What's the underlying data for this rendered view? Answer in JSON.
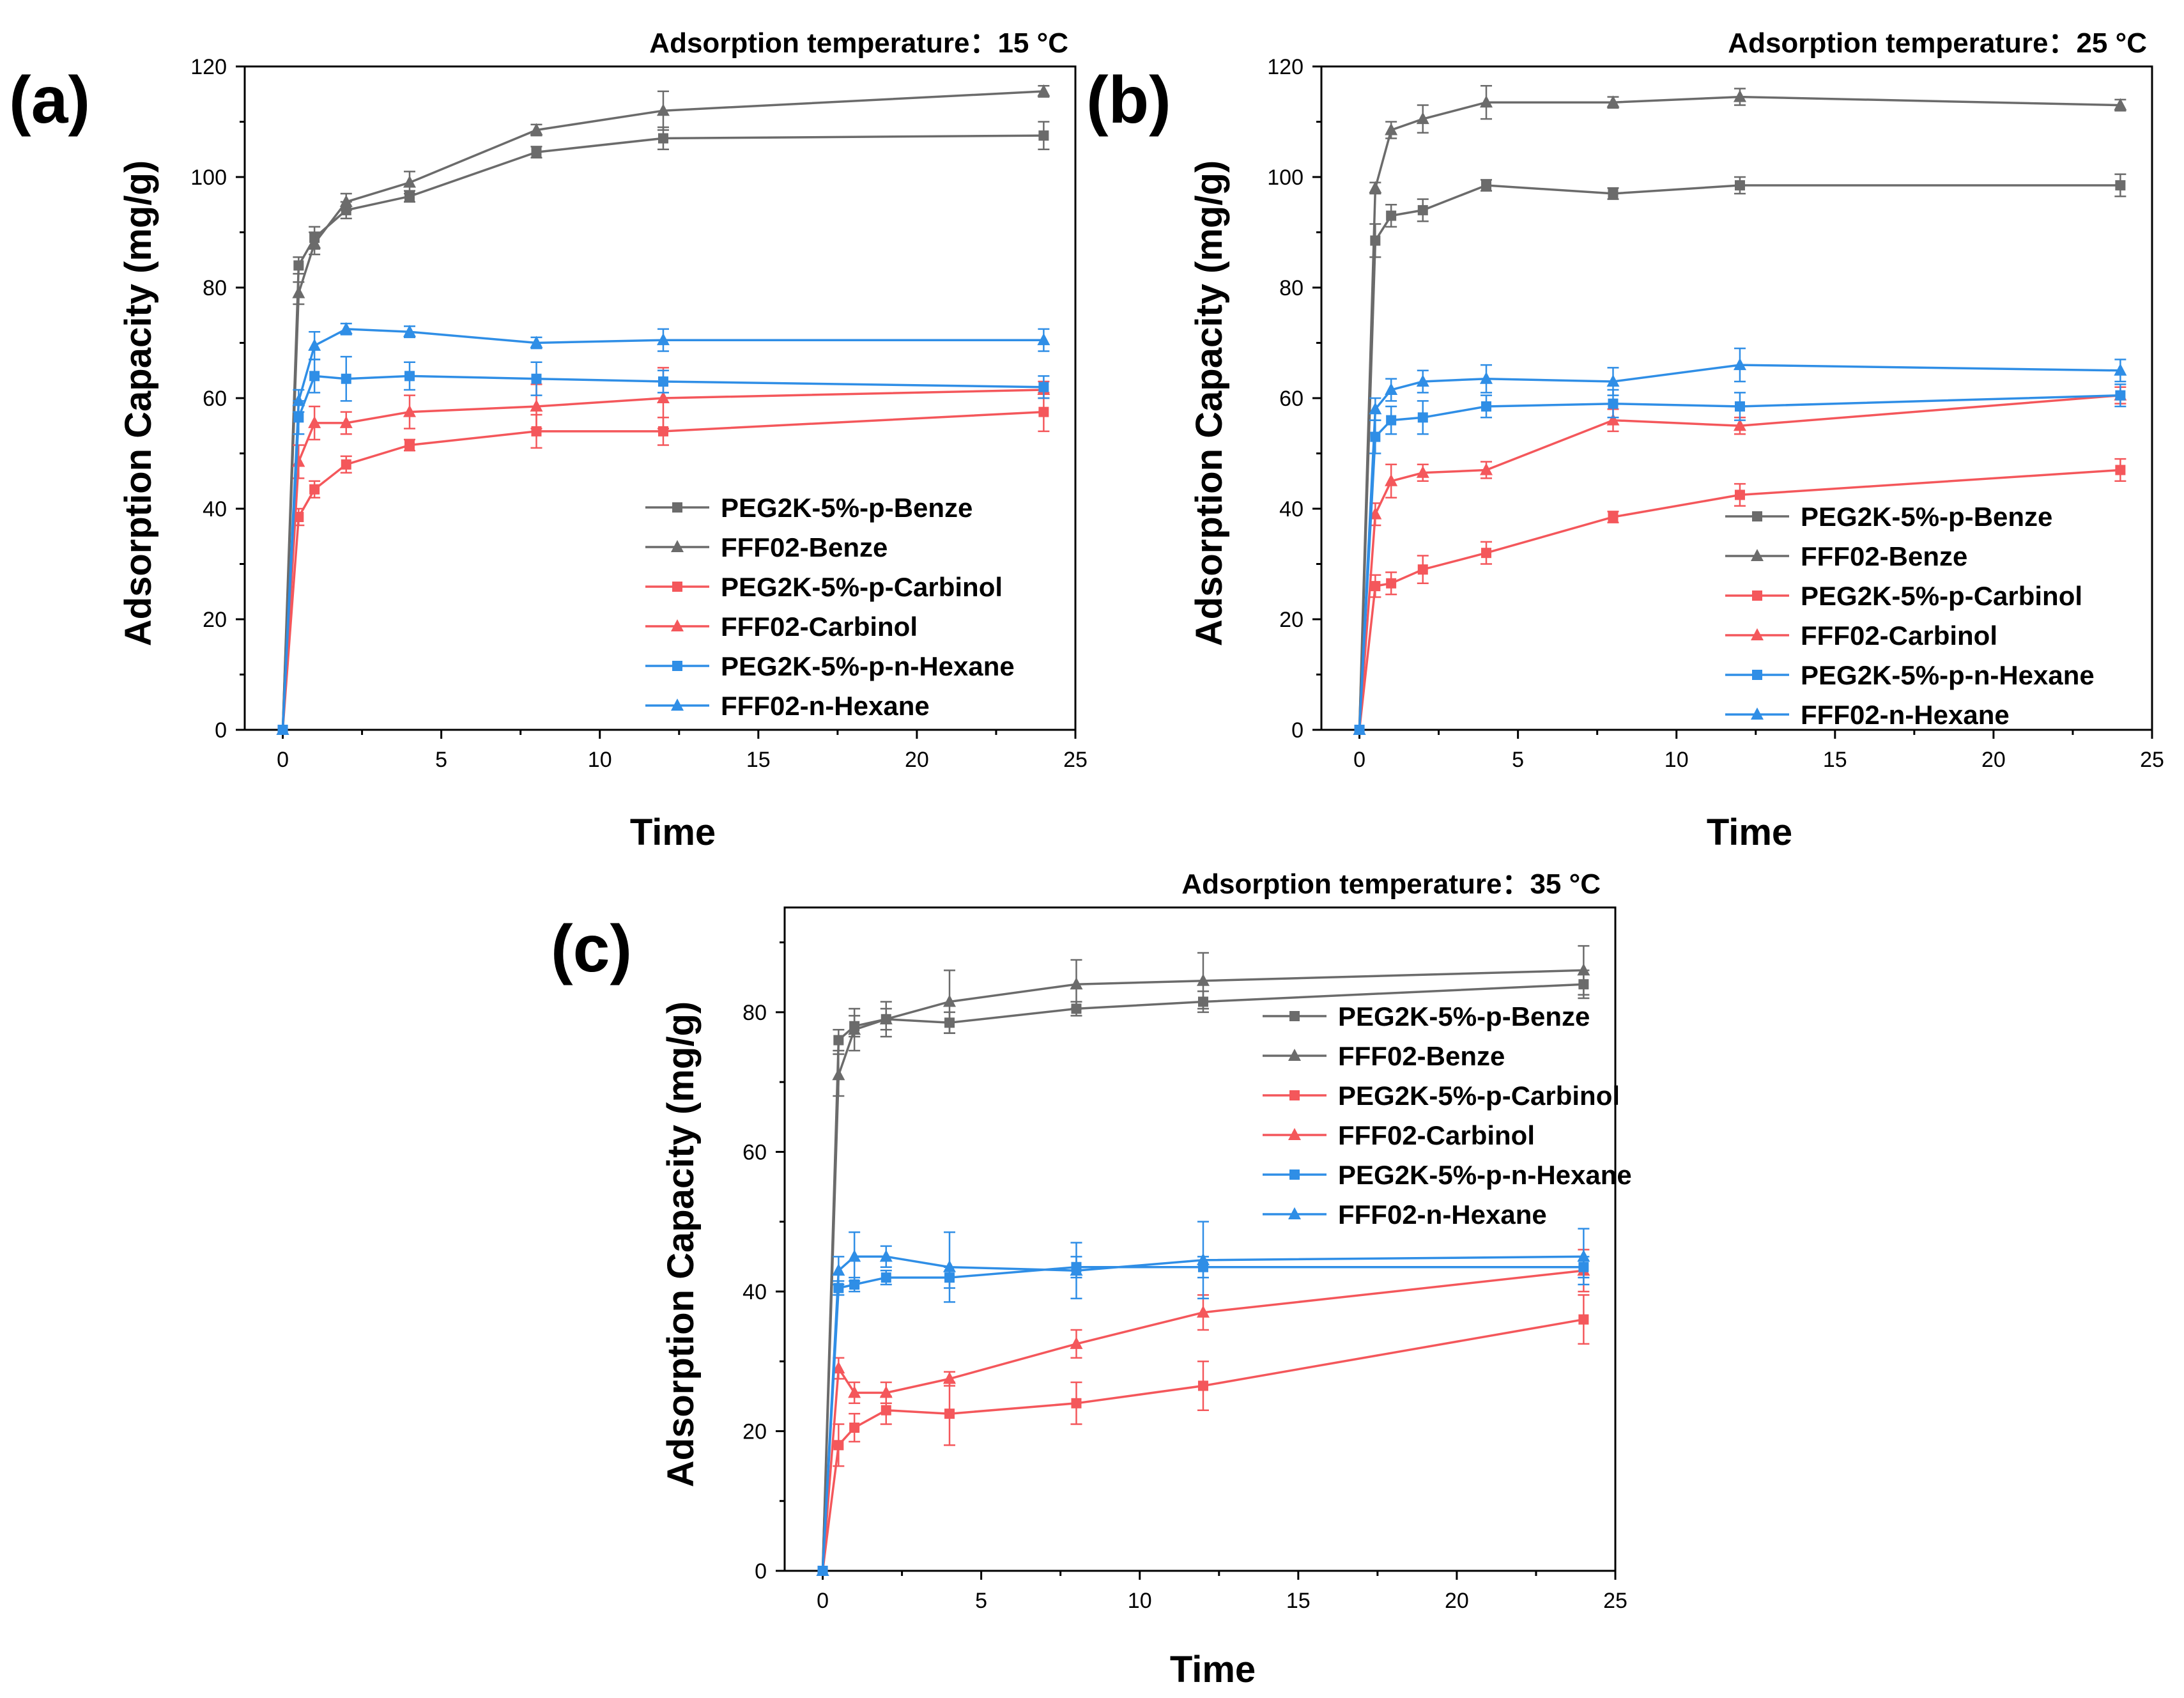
{
  "colors": {
    "gray": "#6b6b6b",
    "red": "#f4575b",
    "blue": "#2f8ee6"
  },
  "chart_data": [
    {
      "type": "line",
      "panel_label": "(a)",
      "title": "Adsorption temperature：15 °C",
      "xlabel": "Time",
      "ylabel": "Adsorption Capacity (mg/g)",
      "xlim": [
        -1.2,
        25
      ],
      "ylim": [
        0,
        120
      ],
      "xticks": [
        "0",
        "5",
        "10",
        "15",
        "20",
        "25"
      ],
      "yticks": [
        "0",
        "20",
        "40",
        "60",
        "80",
        "100",
        "120"
      ],
      "x": [
        0,
        0.5,
        1,
        2,
        4,
        8,
        12,
        24
      ],
      "series": [
        {
          "name": "PEG2K-5%-p-Benze",
          "color": "gray",
          "marker": "square",
          "values": [
            0,
            84,
            89,
            94,
            96.5,
            104.5,
            107,
            107.5
          ],
          "err": [
            0,
            1.5,
            2,
            1.5,
            1,
            1,
            2,
            2.5
          ]
        },
        {
          "name": "FFF02-Benze",
          "color": "gray",
          "marker": "triangle",
          "values": [
            0,
            79,
            88,
            95.5,
            99,
            108.5,
            112,
            115.5
          ],
          "err": [
            0,
            2,
            2,
            1.5,
            2,
            1,
            3.5,
            1
          ]
        },
        {
          "name": "PEG2K-5%-p-Carbinol",
          "color": "red",
          "marker": "square",
          "values": [
            0,
            38.5,
            43.5,
            48,
            51.5,
            54,
            54,
            57.5
          ],
          "err": [
            0,
            1.5,
            1.5,
            1.5,
            1,
            3,
            2.5,
            3.5
          ]
        },
        {
          "name": "FFF02-Carbinol",
          "color": "red",
          "marker": "triangle",
          "values": [
            0,
            48.5,
            55.5,
            55.5,
            57.5,
            58.5,
            60,
            61.5
          ],
          "err": [
            0,
            3,
            3,
            2,
            3,
            4,
            5.5,
            1.5
          ]
        },
        {
          "name": "PEG2K-5%-p-n-Hexane",
          "color": "blue",
          "marker": "square",
          "values": [
            0,
            56.5,
            64,
            63.5,
            64,
            63.5,
            63,
            62
          ],
          "err": [
            0,
            3,
            3,
            4,
            2.5,
            3,
            2,
            2
          ]
        },
        {
          "name": "FFF02-n-Hexane",
          "color": "blue",
          "marker": "triangle",
          "values": [
            0,
            59.5,
            69.5,
            72.5,
            72,
            70,
            70.5,
            70.5
          ],
          "err": [
            0,
            2,
            2.5,
            1,
            1,
            1,
            2,
            2
          ]
        }
      ]
    },
    {
      "type": "line",
      "panel_label": "(b)",
      "title": "Adsorption temperature：25 °C",
      "xlabel": "Time",
      "ylabel": "Adsorption Capacity (mg/g)",
      "xlim": [
        -1.2,
        25
      ],
      "ylim": [
        0,
        120
      ],
      "xticks": [
        "0",
        "5",
        "10",
        "15",
        "20",
        "25"
      ],
      "yticks": [
        "0",
        "20",
        "40",
        "60",
        "80",
        "100",
        "120"
      ],
      "x": [
        0,
        0.5,
        1,
        2,
        4,
        8,
        12,
        24
      ],
      "series": [
        {
          "name": "PEG2K-5%-p-Benze",
          "color": "gray",
          "marker": "square",
          "values": [
            0,
            88.5,
            93,
            94,
            98.5,
            97,
            98.5,
            98.5
          ],
          "err": [
            0,
            3,
            2,
            2,
            1,
            1,
            1.5,
            2
          ]
        },
        {
          "name": "FFF02-Benze",
          "color": "gray",
          "marker": "triangle",
          "values": [
            0,
            98,
            108.5,
            110.5,
            113.5,
            113.5,
            114.5,
            113
          ],
          "err": [
            0,
            1,
            1.5,
            2.5,
            3,
            1,
            1.5,
            1
          ]
        },
        {
          "name": "PEG2K-5%-p-Carbinol",
          "color": "red",
          "marker": "square",
          "values": [
            0,
            26,
            26.5,
            29,
            32,
            38.5,
            42.5,
            47
          ],
          "err": [
            0,
            2,
            2,
            2.5,
            2,
            1,
            2,
            2
          ]
        },
        {
          "name": "FFF02-Carbinol",
          "color": "red",
          "marker": "triangle",
          "values": [
            0,
            39,
            45,
            46.5,
            47,
            56,
            55,
            60.5
          ],
          "err": [
            0,
            2,
            3,
            1.5,
            1.5,
            2,
            1.5,
            1.5
          ]
        },
        {
          "name": "PEG2K-5%-p-n-Hexane",
          "color": "blue",
          "marker": "square",
          "values": [
            0,
            53,
            56,
            56.5,
            58.5,
            59,
            58.5,
            60.5
          ],
          "err": [
            0,
            3,
            2.5,
            3,
            2,
            2.5,
            2.5,
            2
          ]
        },
        {
          "name": "FFF02-n-Hexane",
          "color": "blue",
          "marker": "triangle",
          "values": [
            0,
            58,
            61.5,
            63,
            63.5,
            63,
            66,
            65
          ],
          "err": [
            0,
            2,
            2,
            2,
            2.5,
            2.5,
            3,
            2
          ]
        }
      ]
    },
    {
      "type": "line",
      "panel_label": "(c)",
      "title": "Adsorption temperature：35 °C",
      "xlabel": "Time",
      "ylabel": "Adsorption Capacity (mg/g)",
      "xlim": [
        -1.2,
        25
      ],
      "ylim": [
        0,
        95
      ],
      "xticks": [
        "0",
        "5",
        "10",
        "15",
        "20",
        "25"
      ],
      "yticks": [
        "0",
        "20",
        "40",
        "60",
        "80"
      ],
      "x": [
        0,
        0.5,
        1,
        2,
        4,
        8,
        12,
        24
      ],
      "series": [
        {
          "name": "PEG2K-5%-p-Benze",
          "color": "gray",
          "marker": "square",
          "values": [
            0,
            76,
            78,
            79,
            78.5,
            80.5,
            81.5,
            84
          ],
          "err": [
            0,
            1.5,
            1.5,
            1.5,
            1.5,
            1,
            1.5,
            2
          ]
        },
        {
          "name": "FFF02-Benze",
          "color": "gray",
          "marker": "triangle",
          "values": [
            0,
            71,
            77.5,
            79,
            81.5,
            84,
            84.5,
            86
          ],
          "err": [
            0,
            3,
            3,
            2.5,
            4.5,
            3.5,
            4,
            3.5
          ]
        },
        {
          "name": "PEG2K-5%-p-Carbinol",
          "color": "red",
          "marker": "square",
          "values": [
            0,
            18,
            20.5,
            23,
            22.5,
            24,
            26.5,
            36
          ],
          "err": [
            0,
            3,
            2,
            2,
            4.5,
            3,
            3.5,
            3.5
          ]
        },
        {
          "name": "FFF02-Carbinol",
          "color": "red",
          "marker": "triangle",
          "values": [
            0,
            29,
            25.5,
            25.5,
            27.5,
            32.5,
            37,
            43
          ],
          "err": [
            0,
            1.5,
            1.5,
            1.5,
            1,
            2,
            2.5,
            3
          ]
        },
        {
          "name": "PEG2K-5%-p-n-Hexane",
          "color": "blue",
          "marker": "square",
          "values": [
            0,
            40.5,
            41,
            42,
            42,
            43.5,
            43.5,
            43.5
          ],
          "err": [
            0,
            1,
            1,
            1,
            1.5,
            1.5,
            1.5,
            1.5
          ]
        },
        {
          "name": "FFF02-n-Hexane",
          "color": "blue",
          "marker": "triangle",
          "values": [
            0,
            43,
            45,
            45,
            43.5,
            43,
            44.5,
            45
          ],
          "err": [
            0,
            2,
            3.5,
            1.5,
            5,
            4,
            5.5,
            4
          ]
        }
      ]
    }
  ]
}
